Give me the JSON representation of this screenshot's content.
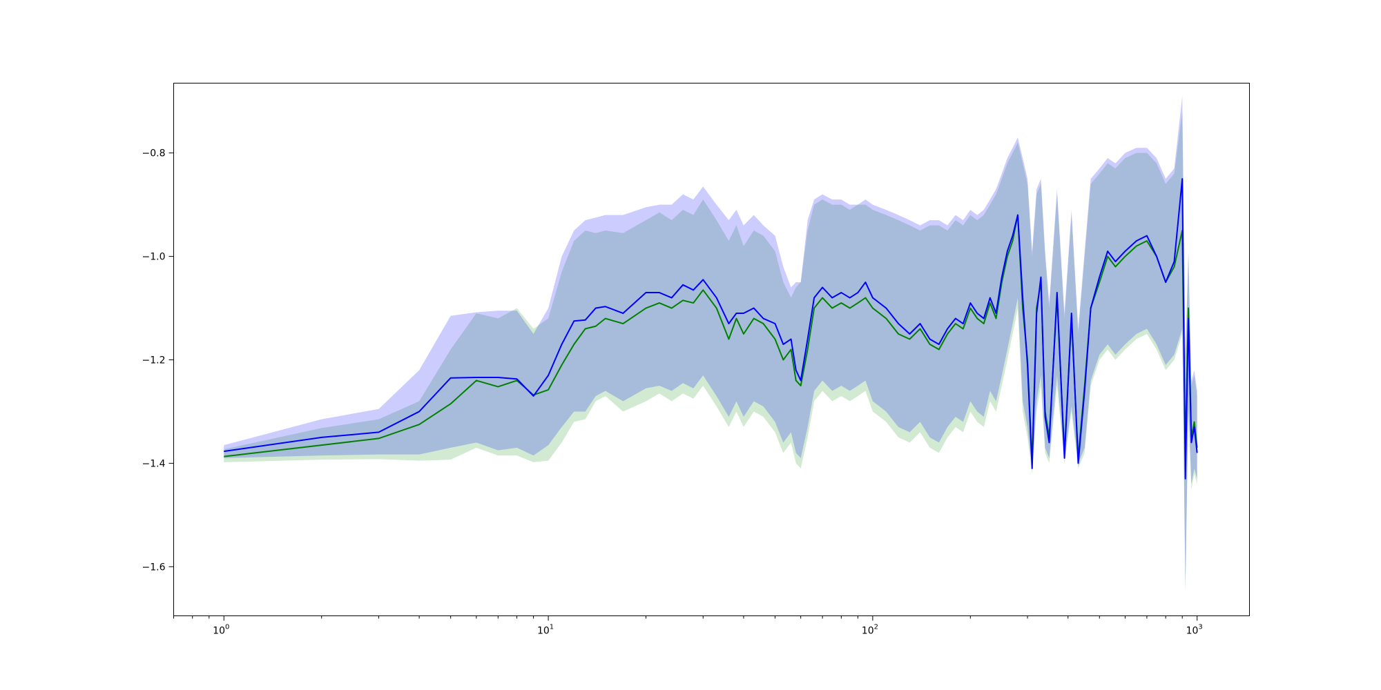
{
  "chart_data": {
    "type": "line",
    "title": "",
    "xlabel": "",
    "ylabel": "",
    "xscale": "log",
    "xlim": [
      0.7,
      1450
    ],
    "ylim": [
      -1.695,
      -0.665
    ],
    "grid": false,
    "x_ticks": [
      {
        "value": 1,
        "base": "10",
        "exp": "0"
      },
      {
        "value": 10,
        "base": "10",
        "exp": "1"
      },
      {
        "value": 100,
        "base": "10",
        "exp": "2"
      },
      {
        "value": 1000,
        "base": "10",
        "exp": "3"
      }
    ],
    "y_ticks": [
      {
        "value": -0.8,
        "label": "−0.8"
      },
      {
        "value": -1.0,
        "label": "−1.0"
      },
      {
        "value": -1.2,
        "label": "−1.2"
      },
      {
        "value": -1.4,
        "label": "−1.4"
      },
      {
        "value": -1.6,
        "label": "−1.6"
      }
    ],
    "series": [
      {
        "color": "#1f77b4",
        "line_color": "#008000",
        "band_color": "#2ca02c",
        "band_opacity": 0.22,
        "x": [
          1,
          2,
          3,
          4,
          5,
          6,
          7,
          8,
          9,
          10,
          11,
          12,
          13,
          14,
          15,
          17,
          20,
          22,
          24,
          26,
          28,
          30,
          33,
          36,
          38,
          40,
          43,
          46,
          50,
          53,
          56,
          58,
          60,
          63,
          66,
          70,
          75,
          80,
          85,
          90,
          95,
          100,
          110,
          120,
          130,
          140,
          150,
          160,
          170,
          180,
          190,
          200,
          210,
          220,
          230,
          240,
          250,
          260,
          270,
          280,
          290,
          300,
          310,
          320,
          330,
          340,
          350,
          370,
          390,
          410,
          430,
          450,
          470,
          500,
          530,
          560,
          600,
          650,
          700,
          750,
          800,
          850,
          900,
          920,
          940,
          960,
          980,
          1000
        ],
        "mean": [
          -1.387,
          -1.365,
          -1.352,
          -1.325,
          -1.285,
          -1.24,
          -1.252,
          -1.24,
          -1.268,
          -1.258,
          -1.21,
          -1.17,
          -1.14,
          -1.135,
          -1.12,
          -1.13,
          -1.1,
          -1.09,
          -1.1,
          -1.085,
          -1.09,
          -1.065,
          -1.1,
          -1.16,
          -1.12,
          -1.15,
          -1.12,
          -1.13,
          -1.16,
          -1.2,
          -1.18,
          -1.24,
          -1.25,
          -1.18,
          -1.1,
          -1.08,
          -1.1,
          -1.09,
          -1.1,
          -1.09,
          -1.08,
          -1.1,
          -1.12,
          -1.15,
          -1.16,
          -1.14,
          -1.17,
          -1.18,
          -1.15,
          -1.13,
          -1.14,
          -1.1,
          -1.12,
          -1.13,
          -1.09,
          -1.12,
          -1.05,
          -1.0,
          -0.97,
          -0.92,
          -1.1,
          -1.2,
          -1.4,
          -1.1,
          -1.05,
          -1.3,
          -1.35,
          -1.08,
          -1.38,
          -1.12,
          -1.39,
          -1.25,
          -1.1,
          -1.05,
          -1.0,
          -1.02,
          -1.0,
          -0.98,
          -0.97,
          -1.0,
          -1.05,
          -1.02,
          -0.95,
          -1.38,
          -1.1,
          -1.35,
          -1.32,
          -1.37
        ],
        "upper": [
          -1.373,
          -1.332,
          -1.315,
          -1.28,
          -1.18,
          -1.11,
          -1.12,
          -1.1,
          -1.14,
          -1.12,
          -1.03,
          -0.97,
          -0.95,
          -0.955,
          -0.95,
          -0.955,
          -0.93,
          -0.915,
          -0.93,
          -0.91,
          -0.92,
          -0.89,
          -0.93,
          -0.97,
          -0.94,
          -0.98,
          -0.95,
          -0.96,
          -0.99,
          -1.05,
          -1.08,
          -1.06,
          -1.05,
          -0.95,
          -0.9,
          -0.89,
          -0.9,
          -0.9,
          -0.91,
          -0.9,
          -0.9,
          -0.91,
          -0.92,
          -0.93,
          -0.94,
          -0.95,
          -0.94,
          -0.94,
          -0.95,
          -0.93,
          -0.94,
          -0.92,
          -0.93,
          -0.92,
          -0.9,
          -0.88,
          -0.85,
          -0.82,
          -0.8,
          -0.78,
          -0.82,
          -0.86,
          -1.0,
          -0.88,
          -0.86,
          -1.0,
          -1.1,
          -0.88,
          -1.12,
          -0.92,
          -1.15,
          -1.0,
          -0.86,
          -0.84,
          -0.82,
          -0.83,
          -0.81,
          -0.8,
          -0.8,
          -0.82,
          -0.86,
          -0.84,
          -0.72,
          -1.2,
          -1.0,
          -1.25,
          -1.23,
          -1.27
        ],
        "lower": [
          -1.398,
          -1.393,
          -1.392,
          -1.395,
          -1.393,
          -1.37,
          -1.385,
          -1.385,
          -1.398,
          -1.395,
          -1.36,
          -1.32,
          -1.315,
          -1.28,
          -1.27,
          -1.3,
          -1.28,
          -1.265,
          -1.28,
          -1.265,
          -1.275,
          -1.25,
          -1.29,
          -1.33,
          -1.3,
          -1.33,
          -1.3,
          -1.31,
          -1.34,
          -1.38,
          -1.36,
          -1.4,
          -1.41,
          -1.35,
          -1.28,
          -1.26,
          -1.28,
          -1.27,
          -1.28,
          -1.27,
          -1.26,
          -1.3,
          -1.32,
          -1.35,
          -1.36,
          -1.34,
          -1.37,
          -1.38,
          -1.35,
          -1.33,
          -1.34,
          -1.3,
          -1.32,
          -1.33,
          -1.28,
          -1.3,
          -1.25,
          -1.2,
          -1.15,
          -1.1,
          -1.3,
          -1.35,
          -1.42,
          -1.3,
          -1.25,
          -1.38,
          -1.4,
          -1.25,
          -1.4,
          -1.3,
          -1.41,
          -1.38,
          -1.25,
          -1.2,
          -1.18,
          -1.2,
          -1.18,
          -1.16,
          -1.15,
          -1.18,
          -1.22,
          -1.2,
          -1.15,
          -1.65,
          -1.3,
          -1.45,
          -1.42,
          -1.44
        ]
      },
      {
        "color": "#0000ff",
        "line_color": "#0000ff",
        "band_color": "#0000ff",
        "band_opacity": 0.2,
        "x": [
          1,
          2,
          3,
          4,
          5,
          6,
          7,
          8,
          9,
          10,
          11,
          12,
          13,
          14,
          15,
          17,
          20,
          22,
          24,
          26,
          28,
          30,
          33,
          36,
          38,
          40,
          43,
          46,
          50,
          53,
          56,
          58,
          60,
          63,
          66,
          70,
          75,
          80,
          85,
          90,
          95,
          100,
          110,
          120,
          130,
          140,
          150,
          160,
          170,
          180,
          190,
          200,
          210,
          220,
          230,
          240,
          250,
          260,
          270,
          280,
          290,
          300,
          310,
          320,
          330,
          340,
          350,
          370,
          390,
          410,
          430,
          450,
          470,
          500,
          530,
          560,
          600,
          650,
          700,
          750,
          800,
          850,
          900,
          920,
          940,
          960,
          980,
          1000
        ],
        "mean": [
          -1.377,
          -1.35,
          -1.34,
          -1.3,
          -1.235,
          -1.234,
          -1.234,
          -1.237,
          -1.27,
          -1.23,
          -1.17,
          -1.125,
          -1.123,
          -1.1,
          -1.097,
          -1.11,
          -1.07,
          -1.07,
          -1.08,
          -1.055,
          -1.065,
          -1.045,
          -1.08,
          -1.13,
          -1.11,
          -1.11,
          -1.1,
          -1.12,
          -1.13,
          -1.17,
          -1.16,
          -1.22,
          -1.24,
          -1.16,
          -1.08,
          -1.06,
          -1.08,
          -1.07,
          -1.08,
          -1.07,
          -1.05,
          -1.08,
          -1.1,
          -1.13,
          -1.15,
          -1.13,
          -1.16,
          -1.17,
          -1.14,
          -1.12,
          -1.13,
          -1.09,
          -1.11,
          -1.12,
          -1.08,
          -1.11,
          -1.04,
          -0.99,
          -0.96,
          -0.92,
          -1.08,
          -1.21,
          -1.41,
          -1.11,
          -1.04,
          -1.31,
          -1.36,
          -1.07,
          -1.39,
          -1.11,
          -1.4,
          -1.26,
          -1.1,
          -1.04,
          -0.99,
          -1.01,
          -0.99,
          -0.97,
          -0.96,
          -1.0,
          -1.05,
          -1.01,
          -0.85,
          -1.43,
          -1.12,
          -1.36,
          -1.33,
          -1.38
        ],
        "upper": [
          -1.365,
          -1.315,
          -1.295,
          -1.22,
          -1.115,
          -1.108,
          -1.105,
          -1.105,
          -1.15,
          -1.1,
          -1.0,
          -0.95,
          -0.93,
          -0.925,
          -0.92,
          -0.92,
          -0.905,
          -0.9,
          -0.9,
          -0.88,
          -0.89,
          -0.865,
          -0.9,
          -0.93,
          -0.91,
          -0.94,
          -0.92,
          -0.94,
          -0.96,
          -1.02,
          -1.06,
          -1.05,
          -1.05,
          -0.93,
          -0.89,
          -0.88,
          -0.89,
          -0.89,
          -0.9,
          -0.9,
          -0.89,
          -0.9,
          -0.91,
          -0.92,
          -0.93,
          -0.94,
          -0.93,
          -0.93,
          -0.94,
          -0.92,
          -0.93,
          -0.91,
          -0.92,
          -0.91,
          -0.89,
          -0.87,
          -0.84,
          -0.81,
          -0.79,
          -0.77,
          -0.81,
          -0.85,
          -0.99,
          -0.87,
          -0.85,
          -0.99,
          -1.09,
          -0.87,
          -1.11,
          -0.91,
          -1.14,
          -0.99,
          -0.85,
          -0.83,
          -0.81,
          -0.82,
          -0.8,
          -0.79,
          -0.79,
          -0.81,
          -0.85,
          -0.83,
          -0.69,
          -1.19,
          -0.99,
          -1.24,
          -1.22,
          -1.26
        ],
        "lower": [
          -1.39,
          -1.385,
          -1.383,
          -1.383,
          -1.37,
          -1.36,
          -1.375,
          -1.37,
          -1.385,
          -1.365,
          -1.33,
          -1.3,
          -1.3,
          -1.27,
          -1.26,
          -1.28,
          -1.255,
          -1.25,
          -1.26,
          -1.245,
          -1.255,
          -1.23,
          -1.27,
          -1.31,
          -1.28,
          -1.31,
          -1.28,
          -1.29,
          -1.32,
          -1.36,
          -1.34,
          -1.38,
          -1.39,
          -1.33,
          -1.26,
          -1.24,
          -1.26,
          -1.25,
          -1.26,
          -1.25,
          -1.24,
          -1.28,
          -1.3,
          -1.33,
          -1.34,
          -1.32,
          -1.35,
          -1.36,
          -1.33,
          -1.31,
          -1.32,
          -1.28,
          -1.3,
          -1.31,
          -1.26,
          -1.28,
          -1.23,
          -1.18,
          -1.13,
          -1.08,
          -1.28,
          -1.33,
          -1.41,
          -1.28,
          -1.23,
          -1.37,
          -1.39,
          -1.23,
          -1.39,
          -1.29,
          -1.4,
          -1.37,
          -1.24,
          -1.19,
          -1.17,
          -1.19,
          -1.17,
          -1.15,
          -1.14,
          -1.17,
          -1.21,
          -1.19,
          -1.14,
          -1.64,
          -1.29,
          -1.44,
          -1.41,
          -1.43
        ]
      }
    ]
  }
}
